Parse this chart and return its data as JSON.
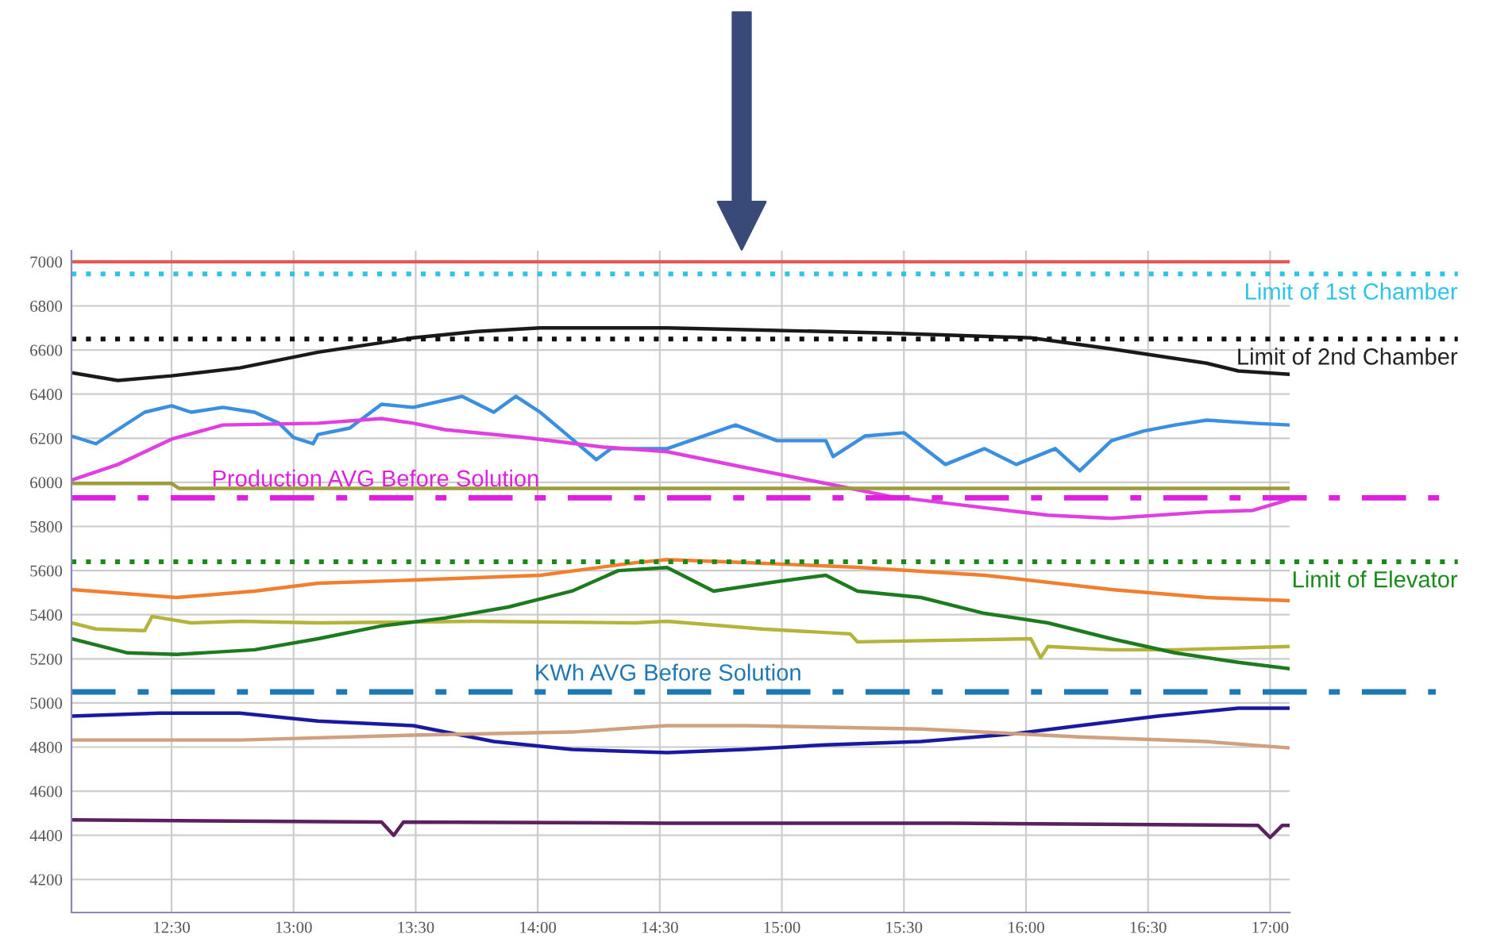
{
  "chart_data": {
    "type": "line",
    "xlim": [
      12.09,
      17.08
    ],
    "ylim": [
      4050,
      7050
    ],
    "xticks": [
      {
        "value": 12.5,
        "label": "12:30"
      },
      {
        "value": 13,
        "label": "13:00"
      },
      {
        "value": 13.5,
        "label": "13:30"
      },
      {
        "value": 14,
        "label": "14:00"
      },
      {
        "value": 14.5,
        "label": "14:30"
      },
      {
        "value": 15,
        "label": "15:00"
      },
      {
        "value": 15.5,
        "label": "15:30"
      },
      {
        "value": 16,
        "label": "16:00"
      },
      {
        "value": 16.5,
        "label": "16:30"
      },
      {
        "value": 17,
        "label": "17:00"
      }
    ],
    "yticks": [
      4200,
      4400,
      4600,
      4800,
      5000,
      5200,
      5400,
      5600,
      5800,
      6000,
      6200,
      6400,
      6600,
      6800,
      7000
    ],
    "grid": true,
    "line_style": "solid",
    "series": [
      {
        "color": "#e05a5a",
        "x": [
          12.09,
          17.08
        ],
        "values": [
          7000,
          7000
        ]
      },
      {
        "color": "#1a1a1a",
        "x": [
          12.09,
          12.28,
          12.5,
          12.78,
          13.1,
          13.49,
          13.75,
          14.01,
          14.53,
          14.92,
          15.44,
          16.02,
          16.35,
          16.74,
          16.87,
          17.08
        ],
        "values": [
          6497,
          6462,
          6483,
          6519,
          6590,
          6655,
          6684,
          6700,
          6700,
          6690,
          6677,
          6655,
          6605,
          6540,
          6505,
          6490
        ]
      },
      {
        "color": "#3a8fe0",
        "x": [
          12.09,
          12.19,
          12.39,
          12.5,
          12.58,
          12.71,
          12.84,
          12.94,
          13.0,
          13.08,
          13.1,
          13.23,
          13.36,
          13.49,
          13.69,
          13.82,
          13.91,
          14.01,
          14.11,
          14.24,
          14.3,
          14.4,
          14.53,
          14.81,
          14.98,
          15.18,
          15.21,
          15.34,
          15.5,
          15.67,
          15.83,
          15.96,
          16.12,
          16.22,
          16.35,
          16.48,
          16.61,
          16.74,
          16.93,
          17.08
        ],
        "values": [
          6210,
          6175,
          6318,
          6347,
          6318,
          6340,
          6318,
          6268,
          6203,
          6175,
          6217,
          6246,
          6354,
          6340,
          6390,
          6318,
          6390,
          6318,
          6225,
          6103,
          6153,
          6153,
          6153,
          6260,
          6189,
          6189,
          6117,
          6210,
          6225,
          6081,
          6153,
          6081,
          6153,
          6052,
          6189,
          6232,
          6260,
          6282,
          6268,
          6260
        ]
      },
      {
        "color": "#e040e0",
        "x": [
          12.09,
          12.28,
          12.5,
          12.71,
          13.1,
          13.36,
          13.49,
          13.62,
          13.95,
          14.27,
          14.53,
          14.85,
          15.18,
          15.44,
          15.7,
          16.09,
          16.35,
          16.74,
          16.93,
          17.08
        ],
        "values": [
          6010,
          6081,
          6196,
          6260,
          6268,
          6289,
          6268,
          6239,
          6203,
          6160,
          6139,
          6067,
          5995,
          5937,
          5902,
          5851,
          5837,
          5866,
          5873,
          5923
        ]
      },
      {
        "color": "#9c9c3c",
        "x": [
          12.09,
          12.5,
          12.53,
          17.08
        ],
        "values": [
          5995,
          5995,
          5973,
          5973
        ]
      },
      {
        "color": "#f08030",
        "x": [
          12.09,
          12.52,
          12.84,
          13.1,
          13.49,
          14.01,
          14.4,
          14.53,
          14.85,
          15.31,
          15.83,
          16.35,
          16.74,
          17.08
        ],
        "values": [
          5514,
          5478,
          5507,
          5543,
          5557,
          5579,
          5636,
          5650,
          5636,
          5615,
          5579,
          5514,
          5478,
          5464
        ]
      },
      {
        "color": "#b4b43c",
        "x": [
          12.09,
          12.19,
          12.39,
          12.42,
          12.58,
          12.78,
          13.1,
          13.75,
          14.4,
          14.53,
          14.92,
          15.28,
          15.31,
          16.02,
          16.06,
          16.09,
          16.35,
          16.61,
          17.08
        ],
        "values": [
          5363,
          5335,
          5328,
          5392,
          5363,
          5370,
          5363,
          5370,
          5363,
          5370,
          5335,
          5313,
          5277,
          5291,
          5205,
          5256,
          5241,
          5241,
          5256
        ]
      },
      {
        "color": "#1e7a1e",
        "x": [
          12.09,
          12.32,
          12.52,
          12.84,
          13.1,
          13.36,
          13.62,
          13.88,
          14.14,
          14.33,
          14.53,
          14.72,
          14.98,
          15.18,
          15.31,
          15.57,
          15.83,
          16.09,
          16.35,
          16.61,
          16.87,
          17.08
        ],
        "values": [
          5291,
          5227,
          5220,
          5241,
          5291,
          5349,
          5385,
          5435,
          5507,
          5600,
          5614,
          5507,
          5550,
          5579,
          5507,
          5478,
          5406,
          5363,
          5291,
          5227,
          5184,
          5155
        ]
      },
      {
        "color": "#1a1aa0",
        "x": [
          12.09,
          12.45,
          12.78,
          13.1,
          13.49,
          13.82,
          14.14,
          14.53,
          14.85,
          15.18,
          15.57,
          15.96,
          16.22,
          16.54,
          16.87,
          17.08
        ],
        "values": [
          4940,
          4954,
          4954,
          4918,
          4897,
          4825,
          4789,
          4775,
          4789,
          4810,
          4825,
          4861,
          4897,
          4940,
          4976,
          4976
        ]
      },
      {
        "color": "#d0a080",
        "x": [
          12.09,
          12.78,
          13.49,
          14.14,
          14.53,
          14.85,
          15.57,
          16.22,
          16.74,
          17.08
        ],
        "values": [
          4832,
          4832,
          4854,
          4868,
          4897,
          4897,
          4882,
          4846,
          4825,
          4796
        ]
      },
      {
        "color": "#5a2060",
        "x": [
          12.09,
          13.36,
          13.41,
          13.45,
          14.53,
          15.7,
          16.95,
          17.0,
          17.05,
          17.08
        ],
        "values": [
          4470,
          4460,
          4400,
          4460,
          4455,
          4455,
          4445,
          4390,
          4445,
          4445
        ]
      }
    ],
    "ref_lines": [
      {
        "axis": "y",
        "value": 6945,
        "label": "Limit of 1st Chamber",
        "color": "#2ec4e8",
        "line_style": "dotted"
      },
      {
        "axis": "y",
        "value": 6650,
        "label": "Limit of 2nd Chamber",
        "color": "#111111",
        "line_style": "dotted"
      },
      {
        "axis": "y",
        "value": 5930,
        "label": "Production AVG Before Solution",
        "color": "#e020e0",
        "line_style": "dashdot"
      },
      {
        "axis": "y",
        "value": 5640,
        "label": "Limit of Elevator",
        "color": "#1a8a1a",
        "line_style": "dotted"
      },
      {
        "axis": "y",
        "value": 5050,
        "label": "KWh AVG Before Solution",
        "color": "#1f78b4",
        "line_style": "dashdot"
      }
    ]
  }
}
